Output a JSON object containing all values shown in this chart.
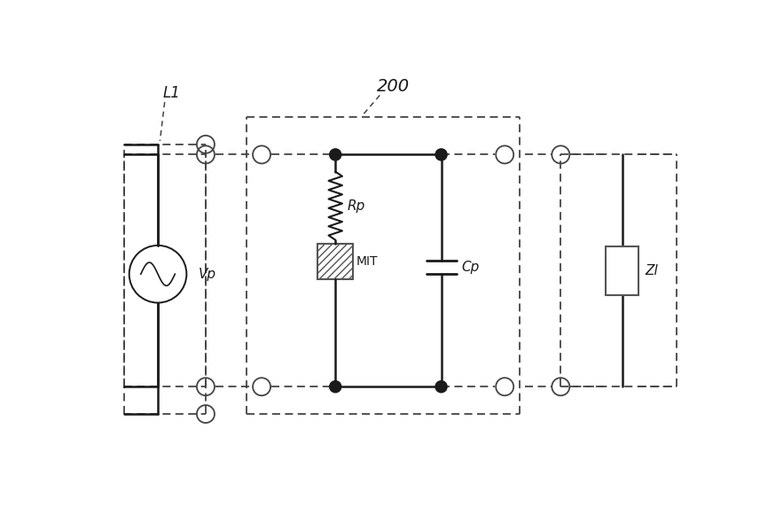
{
  "bg_color": "#ffffff",
  "line_color": "#1a1a1a",
  "dashed_color": "#444444",
  "fig_width": 8.83,
  "fig_height": 5.81,
  "label_L1": "L1",
  "label_Vp": "Vp",
  "label_200": "200",
  "label_Rp": "Rp",
  "label_MIT": "MIT",
  "label_Cp": "Cp",
  "label_Zl": "Zl"
}
